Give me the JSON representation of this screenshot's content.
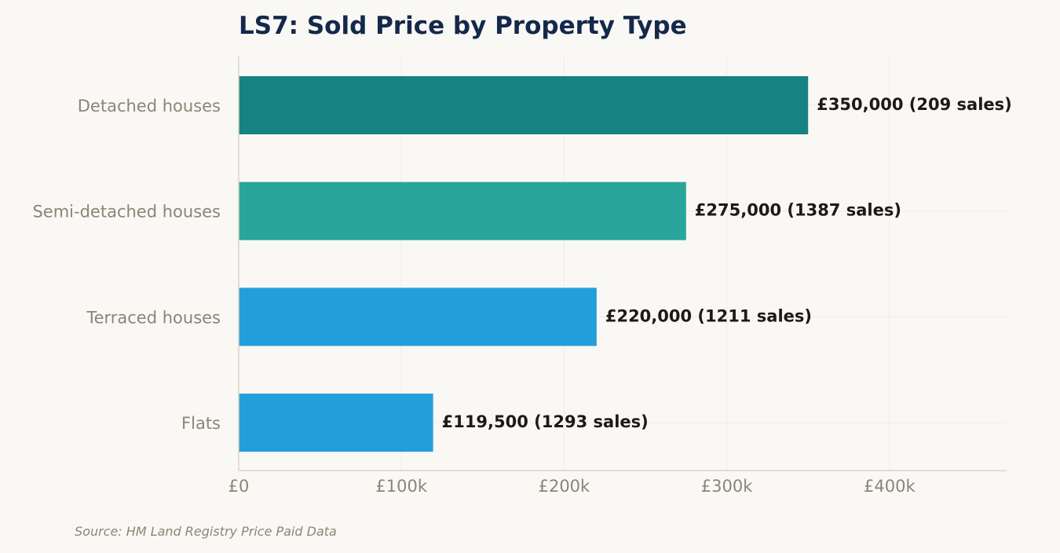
{
  "chart_data": {
    "type": "bar",
    "orientation": "horizontal",
    "title": "LS7: Sold Price by Property Type",
    "categories": [
      "Detached houses",
      "Semi-detached houses",
      "Terraced houses",
      "Flats"
    ],
    "values": [
      350000,
      275000,
      220000,
      119500
    ],
    "sales": [
      209,
      1387,
      1211,
      1293
    ],
    "value_labels": [
      "£350,000  (209 sales)",
      "£275,000  (1387 sales)",
      "£220,000  (1211 sales)",
      "£119,500  (1293 sales)"
    ],
    "bar_colors": [
      "#178282",
      "#2aa59b",
      "#229fda",
      "#229fda"
    ],
    "xlim": [
      0,
      472000
    ],
    "xticks": [
      0,
      100000,
      200000,
      300000,
      400000
    ],
    "xtick_labels": [
      "£0",
      "£100k",
      "£200k",
      "£300k",
      "£400k"
    ],
    "xlabel": "",
    "ylabel": "",
    "grid": true,
    "source": "Source: HM Land Registry Price Paid Data"
  }
}
